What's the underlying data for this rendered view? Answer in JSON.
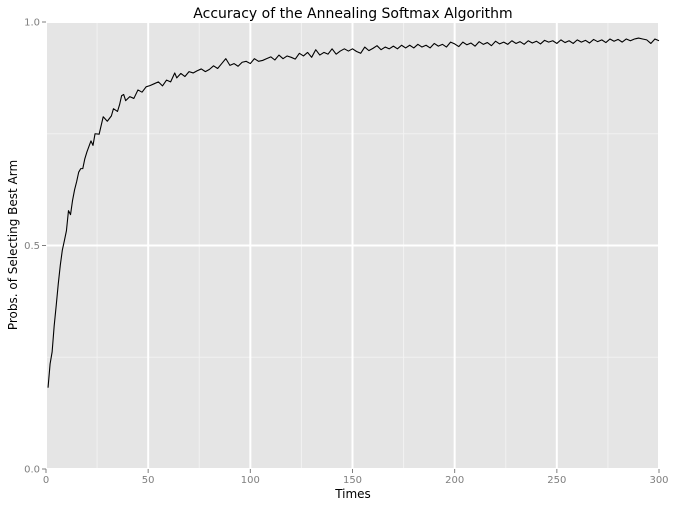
{
  "chart_data": {
    "type": "line",
    "title": "Accuracy of the Annealing Softmax Algorithm",
    "xlabel": "Times",
    "ylabel": "Probs. of Selecting Best Arm",
    "xlim": [
      0,
      300
    ],
    "ylim": [
      0,
      1
    ],
    "grid": true,
    "x_ticks": [
      0,
      50,
      100,
      150,
      200,
      250,
      300
    ],
    "x_tick_labels": [
      "0",
      "50",
      "100",
      "150",
      "200",
      "250",
      "300"
    ],
    "y_ticks": [
      0,
      0.5,
      1
    ],
    "y_tick_labels": [
      "0.0",
      "0.5",
      "1.0"
    ],
    "colors": {
      "panel_background": "#e5e5e5",
      "grid_major": "#ffffff",
      "grid_minor": "#f2f2f2",
      "line": "#000000",
      "tick_label": "#7f7f7f",
      "tick_mark": "#7f7f7f"
    },
    "series": [
      {
        "points": [
          [
            1,
            0.182
          ],
          [
            2,
            0.235
          ],
          [
            3,
            0.262
          ],
          [
            4,
            0.32
          ],
          [
            5,
            0.366
          ],
          [
            6,
            0.414
          ],
          [
            7,
            0.456
          ],
          [
            8,
            0.49
          ],
          [
            9,
            0.511
          ],
          [
            10,
            0.533
          ],
          [
            11,
            0.578
          ],
          [
            12,
            0.569
          ],
          [
            13,
            0.601
          ],
          [
            14,
            0.625
          ],
          [
            15,
            0.643
          ],
          [
            16,
            0.664
          ],
          [
            17,
            0.672
          ],
          [
            18,
            0.672
          ],
          [
            19,
            0.694
          ],
          [
            20,
            0.709
          ],
          [
            22,
            0.734
          ],
          [
            23,
            0.724
          ],
          [
            24,
            0.75
          ],
          [
            26,
            0.749
          ],
          [
            28,
            0.788
          ],
          [
            30,
            0.778
          ],
          [
            32,
            0.79
          ],
          [
            33,
            0.806
          ],
          [
            35,
            0.8
          ],
          [
            36,
            0.815
          ],
          [
            37,
            0.835
          ],
          [
            38,
            0.838
          ],
          [
            39,
            0.824
          ],
          [
            41,
            0.833
          ],
          [
            43,
            0.829
          ],
          [
            45,
            0.848
          ],
          [
            47,
            0.843
          ],
          [
            49,
            0.855
          ],
          [
            51,
            0.858
          ],
          [
            53,
            0.862
          ],
          [
            55,
            0.866
          ],
          [
            57,
            0.857
          ],
          [
            59,
            0.87
          ],
          [
            61,
            0.866
          ],
          [
            63,
            0.886
          ],
          [
            64,
            0.875
          ],
          [
            66,
            0.885
          ],
          [
            68,
            0.878
          ],
          [
            70,
            0.889
          ],
          [
            72,
            0.886
          ],
          [
            74,
            0.891
          ],
          [
            76,
            0.895
          ],
          [
            78,
            0.889
          ],
          [
            80,
            0.894
          ],
          [
            82,
            0.902
          ],
          [
            84,
            0.896
          ],
          [
            86,
            0.907
          ],
          [
            88,
            0.918
          ],
          [
            90,
            0.903
          ],
          [
            92,
            0.907
          ],
          [
            94,
            0.901
          ],
          [
            96,
            0.91
          ],
          [
            98,
            0.912
          ],
          [
            100,
            0.907
          ],
          [
            102,
            0.918
          ],
          [
            104,
            0.912
          ],
          [
            106,
            0.914
          ],
          [
            108,
            0.918
          ],
          [
            110,
            0.922
          ],
          [
            112,
            0.915
          ],
          [
            114,
            0.926
          ],
          [
            116,
            0.918
          ],
          [
            118,
            0.924
          ],
          [
            120,
            0.921
          ],
          [
            122,
            0.917
          ],
          [
            124,
            0.93
          ],
          [
            126,
            0.924
          ],
          [
            128,
            0.932
          ],
          [
            130,
            0.921
          ],
          [
            132,
            0.938
          ],
          [
            134,
            0.926
          ],
          [
            136,
            0.932
          ],
          [
            138,
            0.928
          ],
          [
            140,
            0.94
          ],
          [
            142,
            0.928
          ],
          [
            144,
            0.935
          ],
          [
            146,
            0.94
          ],
          [
            148,
            0.935
          ],
          [
            150,
            0.94
          ],
          [
            152,
            0.934
          ],
          [
            154,
            0.93
          ],
          [
            156,
            0.944
          ],
          [
            158,
            0.936
          ],
          [
            160,
            0.941
          ],
          [
            162,
            0.947
          ],
          [
            164,
            0.938
          ],
          [
            166,
            0.944
          ],
          [
            168,
            0.94
          ],
          [
            170,
            0.946
          ],
          [
            172,
            0.94
          ],
          [
            174,
            0.948
          ],
          [
            176,
            0.942
          ],
          [
            178,
            0.948
          ],
          [
            180,
            0.942
          ],
          [
            182,
            0.95
          ],
          [
            184,
            0.944
          ],
          [
            186,
            0.948
          ],
          [
            188,
            0.942
          ],
          [
            190,
            0.952
          ],
          [
            192,
            0.946
          ],
          [
            194,
            0.95
          ],
          [
            196,
            0.944
          ],
          [
            198,
            0.955
          ],
          [
            200,
            0.951
          ],
          [
            202,
            0.945
          ],
          [
            204,
            0.955
          ],
          [
            206,
            0.949
          ],
          [
            208,
            0.953
          ],
          [
            210,
            0.946
          ],
          [
            212,
            0.956
          ],
          [
            214,
            0.95
          ],
          [
            216,
            0.954
          ],
          [
            218,
            0.947
          ],
          [
            220,
            0.957
          ],
          [
            222,
            0.951
          ],
          [
            224,
            0.955
          ],
          [
            226,
            0.95
          ],
          [
            228,
            0.958
          ],
          [
            230,
            0.952
          ],
          [
            232,
            0.956
          ],
          [
            234,
            0.95
          ],
          [
            236,
            0.958
          ],
          [
            238,
            0.953
          ],
          [
            240,
            0.957
          ],
          [
            242,
            0.951
          ],
          [
            244,
            0.959
          ],
          [
            246,
            0.955
          ],
          [
            248,
            0.958
          ],
          [
            250,
            0.952
          ],
          [
            252,
            0.96
          ],
          [
            254,
            0.954
          ],
          [
            256,
            0.958
          ],
          [
            258,
            0.952
          ],
          [
            260,
            0.96
          ],
          [
            262,
            0.955
          ],
          [
            264,
            0.959
          ],
          [
            266,
            0.953
          ],
          [
            268,
            0.961
          ],
          [
            270,
            0.956
          ],
          [
            272,
            0.96
          ],
          [
            274,
            0.954
          ],
          [
            276,
            0.962
          ],
          [
            278,
            0.957
          ],
          [
            280,
            0.961
          ],
          [
            282,
            0.955
          ],
          [
            284,
            0.962
          ],
          [
            286,
            0.958
          ],
          [
            288,
            0.962
          ],
          [
            290,
            0.964
          ],
          [
            292,
            0.962
          ],
          [
            294,
            0.96
          ],
          [
            296,
            0.952
          ],
          [
            298,
            0.962
          ],
          [
            300,
            0.958
          ]
        ]
      }
    ]
  }
}
